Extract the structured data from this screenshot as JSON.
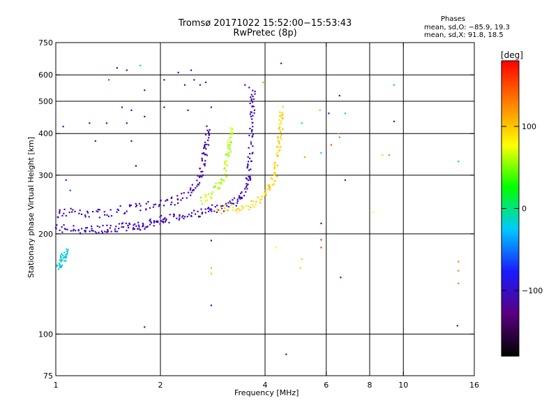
{
  "header": {
    "title_line1": "Tromsø 20171022 15:52:00−15:53:43",
    "title_line2": "RwPretec (8p)"
  },
  "phases": {
    "heading": "Phases",
    "line_o": "mean, sd,O: −85.9, 19.3",
    "line_x": "mean, sd,X:  91.8, 18.5"
  },
  "colorbar": {
    "unit_label": "[deg]",
    "ticks": [
      {
        "value": 100,
        "label": "100"
      },
      {
        "value": 0,
        "label": "0"
      },
      {
        "value": -100,
        "label": "−100"
      }
    ],
    "range": [
      -180,
      180
    ],
    "colors": [
      "#000000",
      "#5a0080",
      "#1a1aff",
      "#00c8ff",
      "#00ff00",
      "#ffff00",
      "#ff8000",
      "#ff0000"
    ]
  },
  "chart_data": {
    "type": "scatter",
    "title": "Tromsø 20171022 15:52:00−15:53:43",
    "subtitle": "RwPretec (8p)",
    "xlabel": "Frequency [MHz]",
    "ylabel": "Stationary phase Virtual Height [km]",
    "xscale": "log",
    "yscale": "log",
    "xlim": [
      1,
      16
    ],
    "ylim": [
      75,
      750
    ],
    "grid": true,
    "x_ticks": [
      {
        "v": 1,
        "l": "1"
      },
      {
        "v": 2,
        "l": "2"
      },
      {
        "v": 4,
        "l": "4"
      },
      {
        "v": 6,
        "l": "6"
      },
      {
        "v": 8,
        "l": "8"
      },
      {
        "v": 10,
        "l": "10"
      },
      {
        "v": 16,
        "l": "16"
      }
    ],
    "x_gridlines": [
      2,
      4,
      6,
      8,
      10
    ],
    "y_ticks": [
      {
        "v": 75,
        "l": "75"
      },
      {
        "v": 100,
        "l": "100"
      },
      {
        "v": 200,
        "l": "200"
      },
      {
        "v": 300,
        "l": "300"
      },
      {
        "v": 400,
        "l": "400"
      },
      {
        "v": 500,
        "l": "500"
      },
      {
        "v": 600,
        "l": "600"
      },
      {
        "v": 750,
        "l": "750"
      }
    ],
    "y_gridlines": [
      100,
      200,
      300,
      400,
      500,
      600
    ],
    "color_value": "phase [deg]",
    "traces": [
      {
        "name": "O-mode low-layer trace",
        "phase": -105,
        "points": [
          [
            1.0,
            208
          ],
          [
            1.1,
            207
          ],
          [
            1.2,
            205
          ],
          [
            1.3,
            206
          ],
          [
            1.4,
            208
          ],
          [
            1.5,
            209
          ],
          [
            1.6,
            210
          ],
          [
            1.7,
            211
          ],
          [
            1.8,
            212
          ],
          [
            1.9,
            216
          ],
          [
            2.0,
            220
          ],
          [
            2.1,
            222
          ],
          [
            2.3,
            226
          ],
          [
            2.5,
            230
          ],
          [
            2.7,
            234
          ],
          [
            2.9,
            238
          ],
          [
            3.1,
            244
          ],
          [
            3.3,
            252
          ],
          [
            3.45,
            262
          ],
          [
            3.55,
            280
          ],
          [
            3.6,
            310
          ],
          [
            3.63,
            350
          ],
          [
            3.65,
            400
          ],
          [
            3.67,
            450
          ],
          [
            3.68,
            500
          ],
          [
            3.69,
            540
          ]
        ]
      },
      {
        "name": "O-mode upper trace",
        "phase": -110,
        "points": [
          [
            1.0,
            230
          ],
          [
            1.1,
            232
          ],
          [
            1.25,
            228
          ],
          [
            1.4,
            232
          ],
          [
            1.6,
            238
          ],
          [
            1.8,
            242
          ],
          [
            2.0,
            246
          ],
          [
            2.2,
            252
          ],
          [
            2.4,
            262
          ],
          [
            2.55,
            280
          ],
          [
            2.62,
            300
          ],
          [
            2.66,
            330
          ],
          [
            2.7,
            360
          ],
          [
            2.72,
            390
          ],
          [
            2.75,
            420
          ]
        ]
      },
      {
        "name": "X-mode trace",
        "phase": 95,
        "points": [
          [
            2.9,
            238
          ],
          [
            3.2,
            236
          ],
          [
            3.5,
            240
          ],
          [
            3.8,
            250
          ],
          [
            4.0,
            262
          ],
          [
            4.15,
            280
          ],
          [
            4.25,
            300
          ],
          [
            4.32,
            330
          ],
          [
            4.38,
            360
          ],
          [
            4.42,
            400
          ],
          [
            4.45,
            440
          ],
          [
            4.48,
            480
          ]
        ]
      },
      {
        "name": "X-mode lower arc",
        "phase": 60,
        "points": [
          [
            2.6,
            250
          ],
          [
            2.8,
            262
          ],
          [
            2.95,
            280
          ],
          [
            3.05,
            300
          ],
          [
            3.1,
            330
          ],
          [
            3.15,
            360
          ],
          [
            3.18,
            390
          ],
          [
            3.2,
            420
          ]
        ]
      },
      {
        "name": "Sporadic low echo",
        "phase": -20,
        "points": [
          [
            1.02,
            160
          ],
          [
            1.04,
            165
          ],
          [
            1.05,
            170
          ],
          [
            1.06,
            175
          ],
          [
            1.08,
            178
          ]
        ]
      }
    ],
    "scattered_points": [
      {
        "x": 1.5,
        "y": 630,
        "phase": -110
      },
      {
        "x": 1.6,
        "y": 620,
        "phase": -110
      },
      {
        "x": 1.75,
        "y": 640,
        "phase": -20
      },
      {
        "x": 1.42,
        "y": 580,
        "phase": 160
      },
      {
        "x": 1.8,
        "y": 540,
        "phase": -100
      },
      {
        "x": 1.55,
        "y": 480,
        "phase": -110
      },
      {
        "x": 1.65,
        "y": 470,
        "phase": -110
      },
      {
        "x": 1.4,
        "y": 430,
        "phase": -110
      },
      {
        "x": 1.6,
        "y": 430,
        "phase": -110
      },
      {
        "x": 1.8,
        "y": 450,
        "phase": -110
      },
      {
        "x": 1.25,
        "y": 430,
        "phase": -110
      },
      {
        "x": 1.65,
        "y": 380,
        "phase": -110
      },
      {
        "x": 1.05,
        "y": 420,
        "phase": -100
      },
      {
        "x": 2.05,
        "y": 580,
        "phase": -110
      },
      {
        "x": 2.25,
        "y": 610,
        "phase": -110
      },
      {
        "x": 2.45,
        "y": 620,
        "phase": -110
      },
      {
        "x": 2.5,
        "y": 580,
        "phase": -110
      },
      {
        "x": 2.7,
        "y": 570,
        "phase": -110
      },
      {
        "x": 2.35,
        "y": 560,
        "phase": -110
      },
      {
        "x": 2.6,
        "y": 560,
        "phase": -110
      },
      {
        "x": 2.05,
        "y": 480,
        "phase": -110
      },
      {
        "x": 2.4,
        "y": 470,
        "phase": -110
      },
      {
        "x": 2.8,
        "y": 480,
        "phase": -100
      },
      {
        "x": 3.5,
        "y": 560,
        "phase": -120
      },
      {
        "x": 3.6,
        "y": 550,
        "phase": -110
      },
      {
        "x": 3.95,
        "y": 570,
        "phase": 120
      },
      {
        "x": 4.45,
        "y": 650,
        "phase": -110
      },
      {
        "x": 5.75,
        "y": 470,
        "phase": 110
      },
      {
        "x": 6.1,
        "y": 460,
        "phase": -110
      },
      {
        "x": 6.55,
        "y": 520,
        "phase": -110
      },
      {
        "x": 6.8,
        "y": 460,
        "phase": -20
      },
      {
        "x": 5.1,
        "y": 430,
        "phase": -20
      },
      {
        "x": 6.5,
        "y": 400,
        "phase": 120
      },
      {
        "x": 6.55,
        "y": 390,
        "phase": -10
      },
      {
        "x": 6.2,
        "y": 370,
        "phase": 150
      },
      {
        "x": 5.8,
        "y": 350,
        "phase": -20
      },
      {
        "x": 5.2,
        "y": 340,
        "phase": 120
      },
      {
        "x": 6.8,
        "y": 290,
        "phase": -110
      },
      {
        "x": 8.7,
        "y": 345,
        "phase": 60
      },
      {
        "x": 9.1,
        "y": 345,
        "phase": 130
      },
      {
        "x": 9.4,
        "y": 560,
        "phase": -20
      },
      {
        "x": 9.4,
        "y": 435,
        "phase": -110
      },
      {
        "x": 14.4,
        "y": 330,
        "phase": -20
      },
      {
        "x": 5.8,
        "y": 215,
        "phase": -110
      },
      {
        "x": 5.8,
        "y": 192,
        "phase": 160
      },
      {
        "x": 5.8,
        "y": 182,
        "phase": 160
      },
      {
        "x": 4.3,
        "y": 182,
        "phase": 80
      },
      {
        "x": 5.1,
        "y": 168,
        "phase": 100
      },
      {
        "x": 5.05,
        "y": 158,
        "phase": 100
      },
      {
        "x": 6.6,
        "y": 148,
        "phase": -110
      },
      {
        "x": 2.8,
        "y": 158,
        "phase": 110
      },
      {
        "x": 2.8,
        "y": 152,
        "phase": 100
      },
      {
        "x": 2.8,
        "y": 191,
        "phase": -110
      },
      {
        "x": 2.8,
        "y": 122,
        "phase": -100
      },
      {
        "x": 1.8,
        "y": 105,
        "phase": -110
      },
      {
        "x": 4.6,
        "y": 87,
        "phase": -110
      },
      {
        "x": 14.4,
        "y": 165,
        "phase": 130
      },
      {
        "x": 14.4,
        "y": 155,
        "phase": 130
      },
      {
        "x": 14.4,
        "y": 142,
        "phase": 130
      },
      {
        "x": 14.3,
        "y": 106,
        "phase": -110
      },
      {
        "x": 8.2,
        "y": 232,
        "phase": 80
      },
      {
        "x": 1.7,
        "y": 320,
        "phase": -150
      },
      {
        "x": 1.3,
        "y": 380,
        "phase": -110
      },
      {
        "x": 1.07,
        "y": 290,
        "phase": -90
      },
      {
        "x": 1.1,
        "y": 270,
        "phase": -60
      }
    ]
  }
}
